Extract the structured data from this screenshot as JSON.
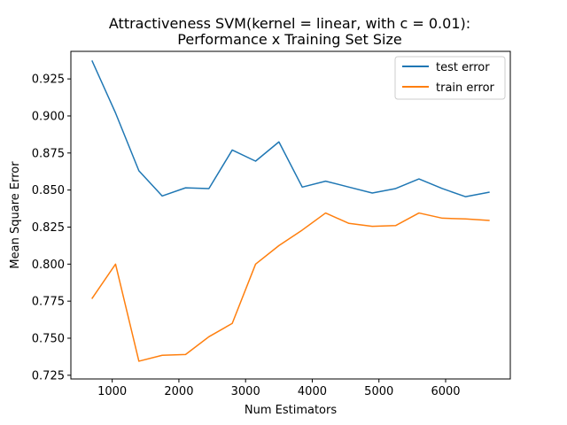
{
  "chart_data": {
    "type": "line",
    "title": [
      "Attractiveness SVM(kernel = linear, with c = 0.01):",
      "Performance x Training Set Size"
    ],
    "xlabel": "Num Estimators",
    "ylabel": "Mean Square Error",
    "xlim": [
      380,
      6970
    ],
    "ylim": [
      0.7225,
      0.9436
    ],
    "xticks": [
      1000,
      2000,
      3000,
      4000,
      5000,
      6000
    ],
    "xtick_labels": [
      "1000",
      "2000",
      "3000",
      "4000",
      "5000",
      "6000"
    ],
    "yticks": [
      0.725,
      0.75,
      0.775,
      0.8,
      0.825,
      0.85,
      0.875,
      0.9,
      0.925
    ],
    "ytick_labels": [
      "0.725",
      "0.750",
      "0.775",
      "0.800",
      "0.825",
      "0.850",
      "0.875",
      "0.900",
      "0.925"
    ],
    "grid": false,
    "legend_position": "top-right",
    "x": [
      700,
      1050,
      1400,
      1750,
      2100,
      2450,
      2800,
      3150,
      3500,
      3850,
      4200,
      4550,
      4900,
      5250,
      5600,
      5950,
      6300,
      6650
    ],
    "series": [
      {
        "name": "test error",
        "color": "#1f77b4",
        "values": [
          0.937,
          0.902,
          0.863,
          0.846,
          0.8515,
          0.851,
          0.877,
          0.8695,
          0.8825,
          0.852,
          0.856,
          0.852,
          0.848,
          0.851,
          0.8575,
          0.851,
          0.8455,
          0.8485
        ]
      },
      {
        "name": "train error",
        "color": "#ff7f0e",
        "values": [
          0.777,
          0.8,
          0.7345,
          0.7385,
          0.739,
          0.751,
          0.76,
          0.8,
          0.8125,
          0.823,
          0.8345,
          0.8275,
          0.8255,
          0.826,
          0.8345,
          0.831,
          0.8305,
          0.8295
        ]
      }
    ]
  }
}
